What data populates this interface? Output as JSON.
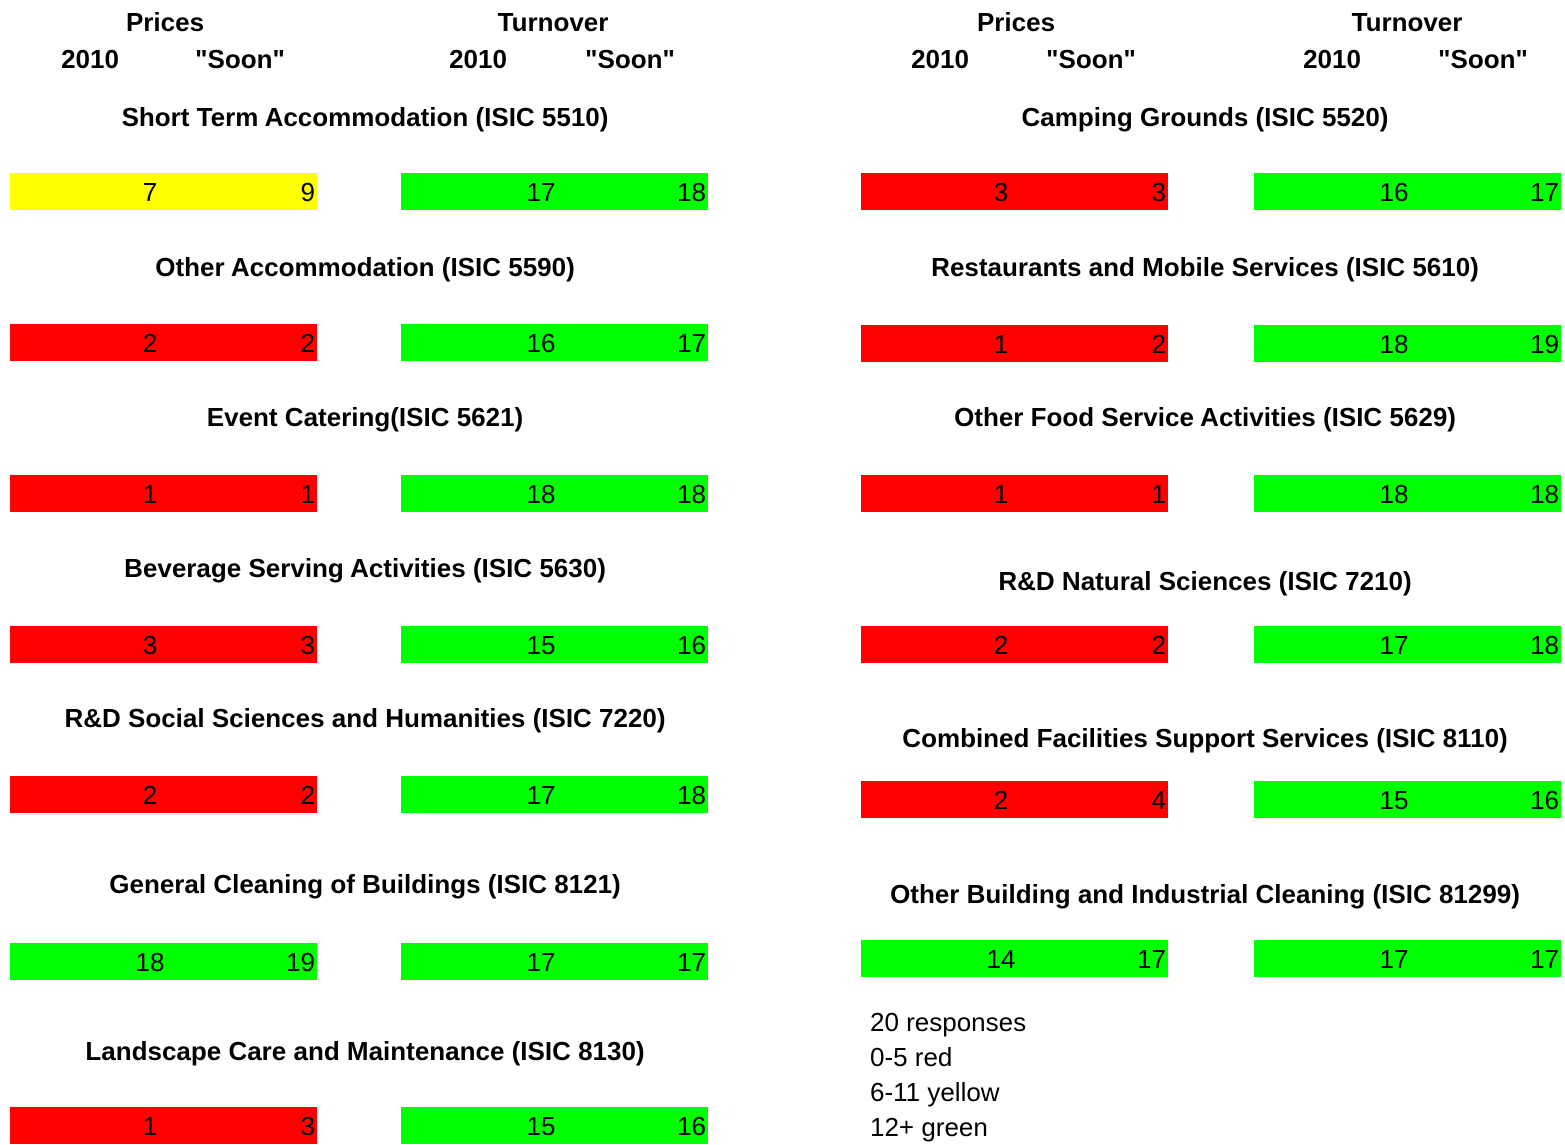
{
  "headers": {
    "prices": "Prices",
    "turnover": "Turnover",
    "year": "2010",
    "soon": "\"Soon\""
  },
  "columns": [
    {
      "sectors": [
        {
          "label": "Short Term Accommodation (ISIC 5510)",
          "prices": {
            "values": [
              7,
              9
            ],
            "color": "#ffff00"
          },
          "turnover": {
            "values": [
              17,
              18
            ],
            "color": "#00ff00"
          }
        },
        {
          "label": "Other Accommodation (ISIC 5590)",
          "prices": {
            "values": [
              2,
              2
            ],
            "color": "#ff0000"
          },
          "turnover": {
            "values": [
              16,
              17
            ],
            "color": "#00ff00"
          }
        },
        {
          "label": "Event Catering(ISIC 5621)",
          "prices": {
            "values": [
              1,
              1
            ],
            "color": "#ff0000"
          },
          "turnover": {
            "values": [
              18,
              18
            ],
            "color": "#00ff00"
          }
        },
        {
          "label": "Beverage Serving Activities (ISIC 5630)",
          "prices": {
            "values": [
              3,
              3
            ],
            "color": "#ff0000"
          },
          "turnover": {
            "values": [
              15,
              16
            ],
            "color": "#00ff00"
          }
        },
        {
          "label": "R&D Social Sciences and Humanities (ISIC 7220)",
          "prices": {
            "values": [
              2,
              2
            ],
            "color": "#ff0000"
          },
          "turnover": {
            "values": [
              17,
              18
            ],
            "color": "#00ff00"
          }
        },
        {
          "label": "General Cleaning of Buildings (ISIC 8121)",
          "prices": {
            "values": [
              18,
              19
            ],
            "color": "#00ff00"
          },
          "turnover": {
            "values": [
              17,
              17
            ],
            "color": "#00ff00"
          }
        },
        {
          "label": "Landscape Care and Maintenance (ISIC 8130)",
          "prices": {
            "values": [
              1,
              3
            ],
            "color": "#ff0000"
          },
          "turnover": {
            "values": [
              15,
              16
            ],
            "color": "#00ff00"
          }
        }
      ]
    },
    {
      "sectors": [
        {
          "label": "Camping Grounds (ISIC 5520)",
          "prices": {
            "values": [
              3,
              3
            ],
            "color": "#ff0000"
          },
          "turnover": {
            "values": [
              16,
              17
            ],
            "color": "#00ff00"
          }
        },
        {
          "label": "Restaurants and Mobile Services (ISIC 5610)",
          "prices": {
            "values": [
              1,
              2
            ],
            "color": "#ff0000"
          },
          "turnover": {
            "values": [
              18,
              19
            ],
            "color": "#00ff00"
          }
        },
        {
          "label": "Other Food Service Activities (ISIC 5629)",
          "prices": {
            "values": [
              1,
              1
            ],
            "color": "#ff0000"
          },
          "turnover": {
            "values": [
              18,
              18
            ],
            "color": "#00ff00"
          }
        },
        {
          "label": "R&D Natural Sciences (ISIC 7210)",
          "prices": {
            "values": [
              2,
              2
            ],
            "color": "#ff0000"
          },
          "turnover": {
            "values": [
              17,
              18
            ],
            "color": "#00ff00"
          }
        },
        {
          "label": "Combined Facilities Support Services (ISIC 8110)",
          "prices": {
            "values": [
              2,
              4
            ],
            "color": "#ff0000"
          },
          "turnover": {
            "values": [
              15,
              16
            ],
            "color": "#00ff00"
          }
        },
        {
          "label": "Other Building and Industrial Cleaning (ISIC 81299)",
          "prices": {
            "values": [
              14,
              17
            ],
            "color": "#00ff00"
          },
          "turnover": {
            "values": [
              17,
              17
            ],
            "color": "#00ff00"
          }
        }
      ]
    }
  ],
  "notes": [
    "20 responses",
    "0-5 red",
    "6-11 yellow",
    "12+ green"
  ]
}
